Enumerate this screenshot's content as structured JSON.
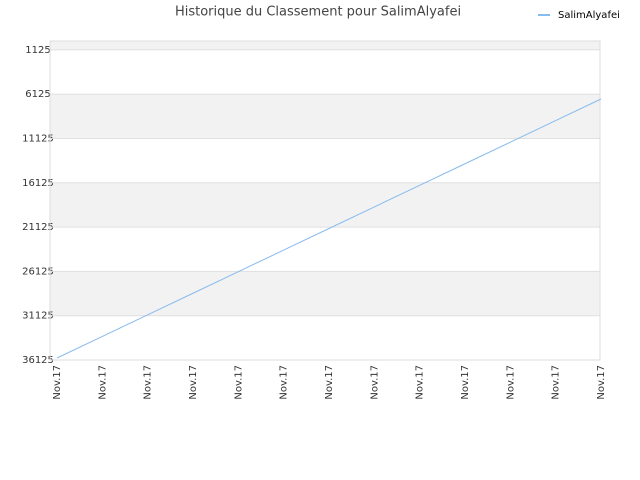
{
  "chart_data": {
    "type": "line",
    "title": "Historique du Classement pour SalimAlyafei",
    "categories": [
      "Nov.17",
      "Nov.17",
      "Nov.17",
      "Nov.17",
      "Nov.17",
      "Nov.17",
      "Nov.17",
      "Nov.17",
      "Nov.17",
      "Nov.17",
      "Nov.17",
      "Nov.17",
      "Nov.17"
    ],
    "series": [
      {
        "name": "SalimAlyafei",
        "color": "#88bbee",
        "values": [
          35900,
          33464,
          31028,
          28593,
          26157,
          23721,
          21285,
          18849,
          16413,
          13977,
          11541,
          9106,
          6670
        ]
      }
    ],
    "ylim": [
      36125,
      125
    ],
    "yticks": [
      1125,
      6125,
      11125,
      16125,
      21125,
      26125,
      31125,
      36125
    ],
    "grid": true,
    "legend": "top-right"
  }
}
